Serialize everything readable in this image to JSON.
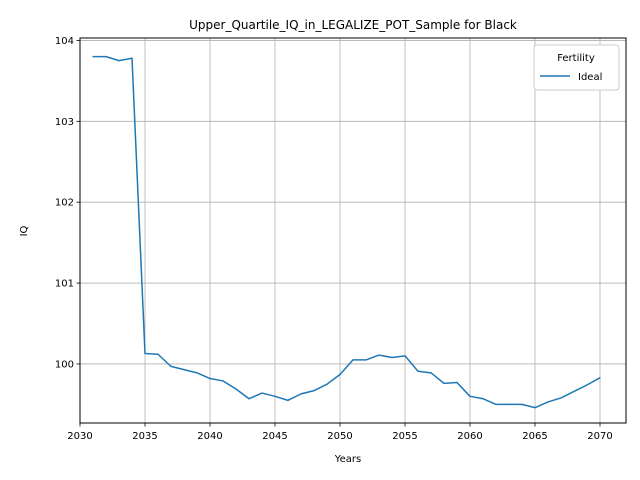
{
  "chart_data": {
    "type": "line",
    "title": "Upper_Quartile_IQ_in_LEGALIZE_POT_Sample for Black",
    "xlabel": "Years",
    "ylabel": "IQ",
    "xlim": [
      2030,
      2072
    ],
    "ylim": [
      99.27,
      104.03
    ],
    "xticks": [
      2030,
      2035,
      2040,
      2045,
      2050,
      2055,
      2060,
      2065,
      2070
    ],
    "yticks": [
      100,
      101,
      102,
      103,
      104
    ],
    "grid": true,
    "legend": {
      "title": "Fertility",
      "placement": "top-right"
    },
    "series": [
      {
        "name": "Ideal",
        "color": "#1f77b4",
        "x": [
          2031,
          2032,
          2033,
          2034,
          2035,
          2036,
          2037,
          2038,
          2039,
          2040,
          2041,
          2042,
          2043,
          2044,
          2045,
          2046,
          2047,
          2048,
          2049,
          2050,
          2051,
          2052,
          2053,
          2054,
          2055,
          2056,
          2057,
          2058,
          2059,
          2060,
          2061,
          2062,
          2063,
          2064,
          2065,
          2066,
          2067,
          2068,
          2069,
          2070
        ],
        "values": [
          103.8,
          103.8,
          103.75,
          103.78,
          100.13,
          100.12,
          99.97,
          99.93,
          99.89,
          99.82,
          99.79,
          99.69,
          99.57,
          99.64,
          99.6,
          99.55,
          99.63,
          99.67,
          99.75,
          99.87,
          100.05,
          100.05,
          100.11,
          100.08,
          100.1,
          99.91,
          99.89,
          99.76,
          99.77,
          99.6,
          99.57,
          99.5,
          99.5,
          99.5,
          99.46,
          99.53,
          99.58,
          99.66,
          99.74,
          99.83
        ]
      }
    ]
  }
}
